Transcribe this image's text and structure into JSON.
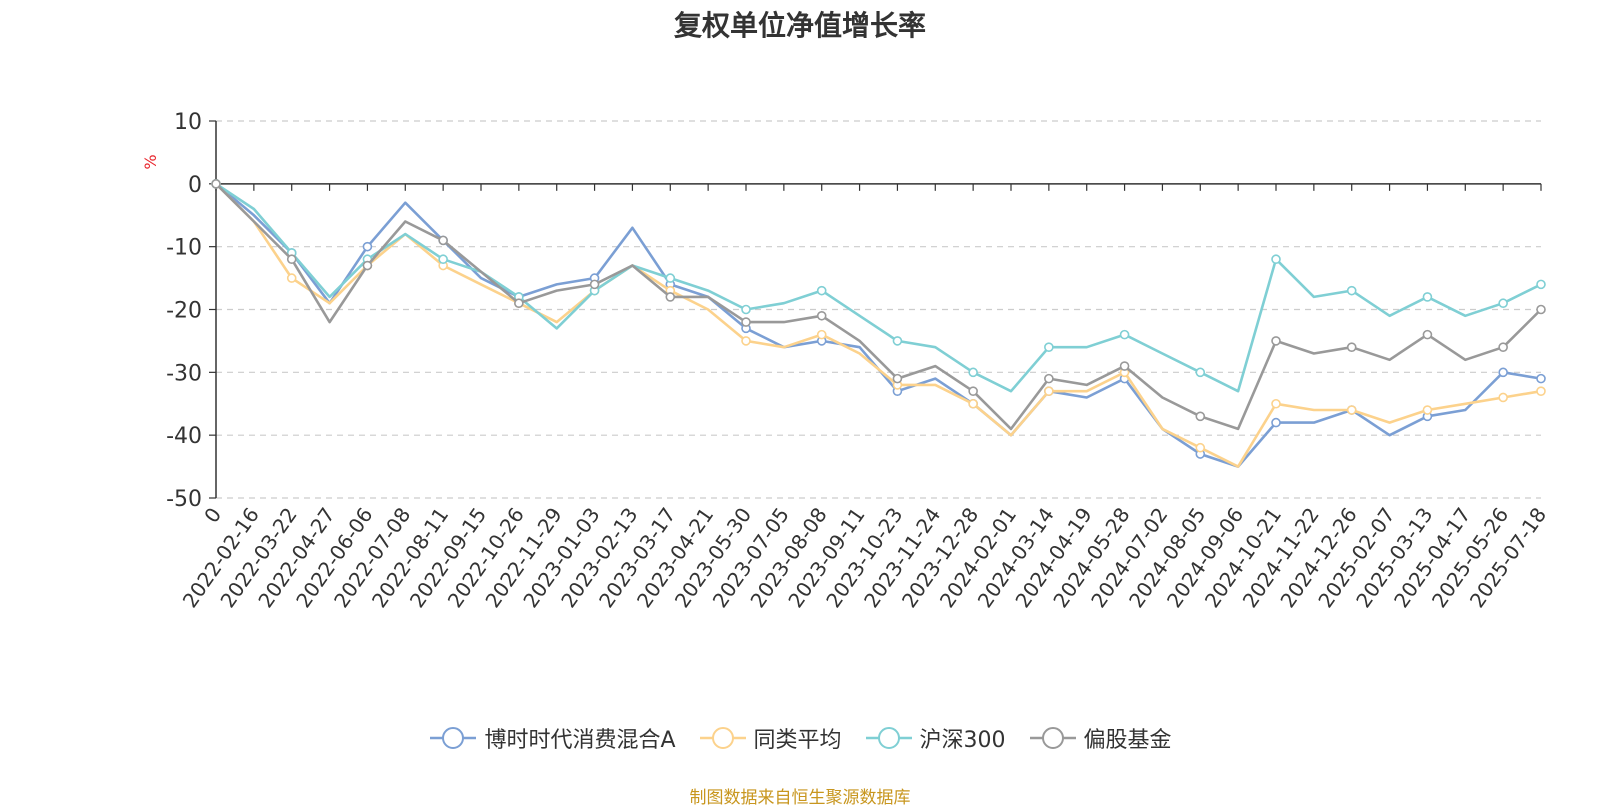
{
  "chart_data": {
    "type": "line",
    "title": "复权单位净值增长率",
    "ylabel": "%",
    "ylim": [
      -50,
      10
    ],
    "yticks": [
      10,
      0,
      -10,
      -20,
      -30,
      -40,
      -50
    ],
    "grid": true,
    "legend_position": "bottom",
    "x_tick_labels": [
      "0",
      "2022-02-16",
      "2022-03-22",
      "2022-04-27",
      "2022-06-06",
      "2022-07-08",
      "2022-08-11",
      "2022-09-15",
      "2022-10-26",
      "2022-11-29",
      "2023-01-03",
      "2023-02-13",
      "2023-03-17",
      "2023-04-21",
      "2023-05-30",
      "2023-07-05",
      "2023-08-08",
      "2023-09-11",
      "2023-10-23",
      "2023-11-24",
      "2023-12-28",
      "2024-02-01",
      "2024-03-14",
      "2024-04-19",
      "2024-05-28",
      "2024-07-02",
      "2024-08-05",
      "2024-09-06",
      "2024-10-21",
      "2024-11-22",
      "2024-12-26",
      "2025-02-07",
      "2025-03-13",
      "2025-04-17",
      "2025-05-26",
      "2025-07-18"
    ],
    "series": [
      {
        "name": "博时时代消费混合A",
        "color": "#7b9fd4",
        "values": [
          0,
          -5,
          -11,
          -19,
          -10,
          -3,
          -9,
          -15,
          -18,
          -16,
          -15,
          -7,
          -16,
          -18,
          -23,
          -26,
          -25,
          -26,
          -33,
          -31,
          -35,
          -40,
          -33,
          -34,
          -31,
          -39,
          -43,
          -45,
          -38,
          -38,
          -36,
          -40,
          -37,
          -36,
          -30,
          -31
        ]
      },
      {
        "name": "同类平均",
        "color": "#fcd28c",
        "values": [
          0,
          -6,
          -15,
          -19,
          -13,
          -8,
          -13,
          -16,
          -19,
          -22,
          -17,
          -13,
          -17,
          -20,
          -25,
          -26,
          -24,
          -27,
          -32,
          -32,
          -35,
          -40,
          -33,
          -33,
          -30,
          -39,
          -42,
          -45,
          -35,
          -36,
          -36,
          -38,
          -36,
          -35,
          -34,
          -33
        ]
      },
      {
        "name": "沪深300",
        "color": "#7fcfd4",
        "values": [
          0,
          -4,
          -11,
          -18,
          -12,
          -8,
          -12,
          -14,
          -18,
          -23,
          -17,
          -13,
          -15,
          -17,
          -20,
          -19,
          -17,
          -21,
          -25,
          -26,
          -30,
          -33,
          -26,
          -26,
          -24,
          -27,
          -30,
          -33,
          -12,
          -18,
          -17,
          -21,
          -18,
          -21,
          -19,
          -16
        ]
      },
      {
        "name": "偏股基金",
        "color": "#999999",
        "values": [
          0,
          -6,
          -12,
          -22,
          -13,
          -6,
          -9,
          -14,
          -19,
          -17,
          -16,
          -13,
          -18,
          -18,
          -22,
          -22,
          -21,
          -25,
          -31,
          -29,
          -33,
          -39,
          -31,
          -32,
          -29,
          -34,
          -37,
          -39,
          -25,
          -27,
          -26,
          -28,
          -24,
          -28,
          -26,
          -20
        ]
      }
    ]
  },
  "source": "制图数据来自恒生聚源数据库"
}
